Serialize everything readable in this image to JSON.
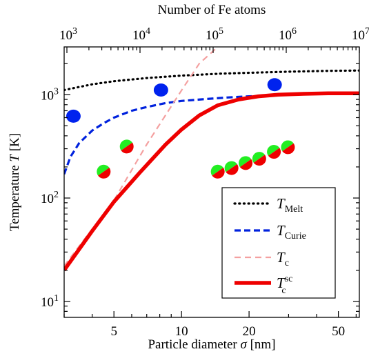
{
  "chart_data": {
    "type": "line",
    "xlabel": "Particle diameter",
    "xlabel_symbol": "σ",
    "xlabel_unit": "[nm]",
    "ylabel": "Temperature",
    "ylabel_symbol": "T",
    "ylabel_unit": "[K]",
    "top_axis_label": "Number of Fe atoms",
    "x_scale": "log",
    "y_scale": "log",
    "xlim": [
      3.0,
      62.0
    ],
    "ylim": [
      7.0,
      2900.0
    ],
    "x_ticks": [
      5,
      10,
      20,
      50
    ],
    "x_tick_labels": [
      "5",
      "10",
      "20",
      "50"
    ],
    "y_ticks": [
      10,
      100,
      1000
    ],
    "y_tick_labels": [
      {
        "base": "10",
        "exp": "1"
      },
      {
        "base": "10",
        "exp": "2"
      },
      {
        "base": "10",
        "exp": "3"
      }
    ],
    "top_ticks_atoms": [
      1000,
      10000,
      100000,
      1000000,
      10000000
    ],
    "top_tick_labels": [
      {
        "base": "10",
        "exp": "3"
      },
      {
        "base": "10",
        "exp": "4"
      },
      {
        "base": "10",
        "exp": "5"
      },
      {
        "base": "10",
        "exp": "6"
      },
      {
        "base": "10",
        "exp": "7"
      }
    ],
    "legend_position": "lower-right",
    "series": [
      {
        "name": "T",
        "subscript": "Melt",
        "superscript": "",
        "style": "dotted",
        "color": "#000000",
        "x": [
          3.0,
          4.0,
          5.0,
          7.0,
          10.0,
          15.0,
          20.0,
          30.0,
          45.0,
          62.0
        ],
        "y": [
          1110,
          1260,
          1350,
          1450,
          1530,
          1600,
          1630,
          1670,
          1700,
          1715
        ]
      },
      {
        "name": "T",
        "subscript": "Curie",
        "superscript": "",
        "style": "dashed",
        "color": "#0022dd",
        "x": [
          3.0,
          3.2,
          3.5,
          4.0,
          4.5,
          5.0,
          6.0,
          7.0,
          8.5,
          10.0,
          13.0,
          16.0,
          20.0,
          25.0
        ],
        "y": [
          170,
          250,
          340,
          450,
          530,
          600,
          700,
          760,
          830,
          870,
          910,
          940,
          965,
          980
        ]
      },
      {
        "name": "T",
        "subscript": "c",
        "superscript": "",
        "style": "dashed-thin",
        "color": "#f4a0a0",
        "x": [
          3.0,
          5.0,
          7.0,
          10.0,
          12.0,
          14.5
        ],
        "y": [
          22,
          95,
          330,
          1100,
          2000,
          2900
        ]
      },
      {
        "name": "T",
        "subscript": "c",
        "superscript": "sc",
        "style": "solid-thick",
        "color": "#ee0000",
        "x": [
          3.0,
          4.0,
          5.0,
          6.5,
          8.5,
          10.0,
          12.0,
          14.5,
          18.0,
          22.0,
          27.0,
          35.0,
          45.0,
          62.0
        ],
        "y": [
          20,
          48,
          92,
          175,
          330,
          460,
          630,
          790,
          900,
          965,
          1000,
          1020,
          1030,
          1030
        ]
      }
    ],
    "points": [
      {
        "kind": "solid",
        "color": "#0022ee",
        "x": 3.3,
        "y": 620
      },
      {
        "kind": "solid",
        "color": "#0022ee",
        "x": 8.1,
        "y": 1110
      },
      {
        "kind": "solid",
        "color": "#0022ee",
        "x": 26.0,
        "y": 1250
      },
      {
        "kind": "split",
        "x": 4.5,
        "y": 180
      },
      {
        "kind": "split",
        "x": 5.7,
        "y": 315
      },
      {
        "kind": "split",
        "x": 14.5,
        "y": 180
      },
      {
        "kind": "split",
        "x": 16.7,
        "y": 195
      },
      {
        "kind": "split",
        "x": 19.3,
        "y": 218
      },
      {
        "kind": "split",
        "x": 22.2,
        "y": 240
      },
      {
        "kind": "split",
        "x": 25.8,
        "y": 280
      },
      {
        "kind": "split",
        "x": 29.8,
        "y": 310
      }
    ],
    "split_colors": {
      "a": "#ee0000",
      "b": "#22ee22"
    }
  }
}
